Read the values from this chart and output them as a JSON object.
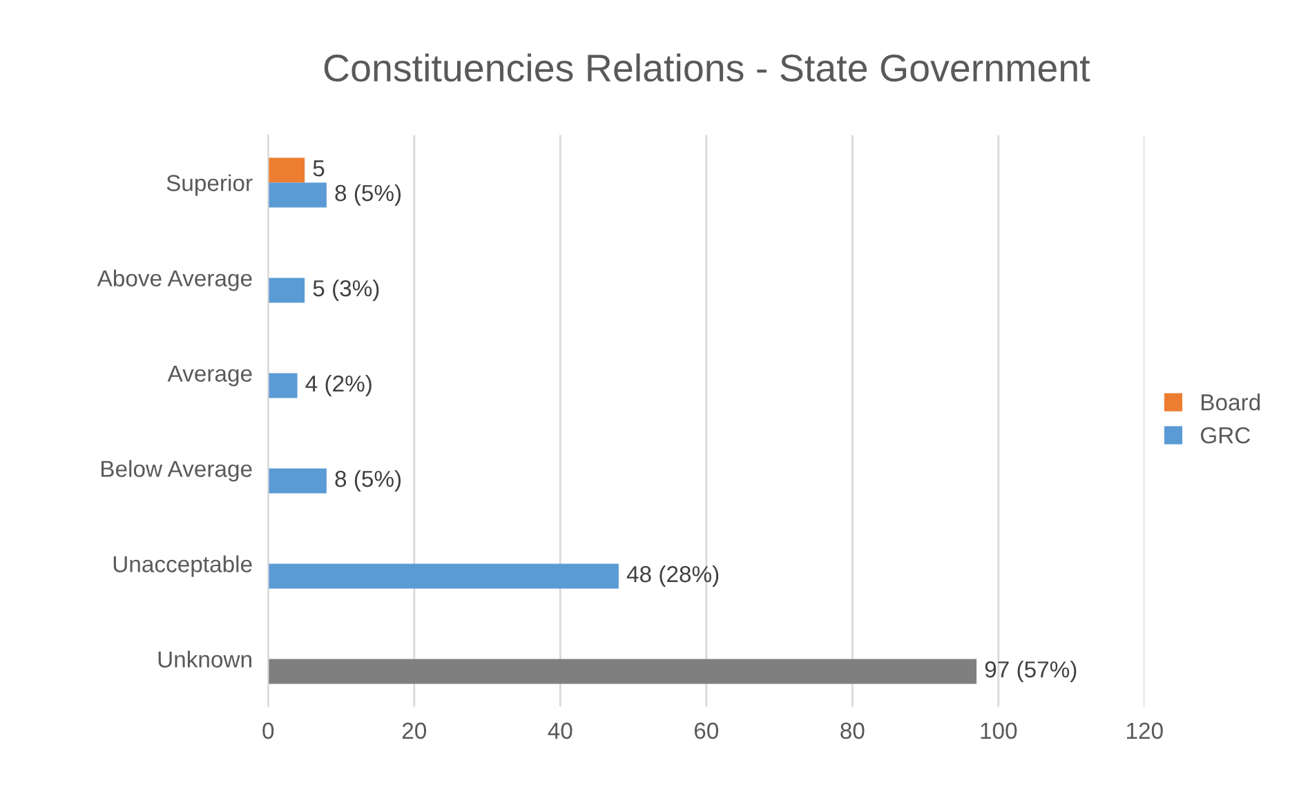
{
  "chart_data": {
    "type": "bar",
    "orientation": "horizontal",
    "title": "Constituencies Relations - State Government",
    "categories": [
      "Superior",
      "Above Average",
      "Average",
      "Below Average",
      "Unacceptable",
      "Unknown"
    ],
    "series": [
      {
        "name": "Board",
        "color": "#ed7d31",
        "values": [
          5,
          null,
          null,
          null,
          null,
          null
        ],
        "value_labels": [
          "5",
          null,
          null,
          null,
          null,
          null
        ]
      },
      {
        "name": "GRC",
        "color": "#5b9bd5",
        "colors": [
          "#5b9bd5",
          "#5b9bd5",
          "#5b9bd5",
          "#5b9bd5",
          "#5b9bd5",
          "#7f7f7f"
        ],
        "values": [
          8,
          5,
          4,
          8,
          48,
          97
        ],
        "value_labels": [
          "8 (5%)",
          "5 (3%)",
          "4 (2%)",
          "8 (5%)",
          "48 (28%)",
          "97 (57%)"
        ]
      }
    ],
    "xlim": [
      0,
      120
    ],
    "xticks": [
      0,
      20,
      40,
      60,
      80,
      100,
      120
    ],
    "grid": "x",
    "legend": "right"
  }
}
